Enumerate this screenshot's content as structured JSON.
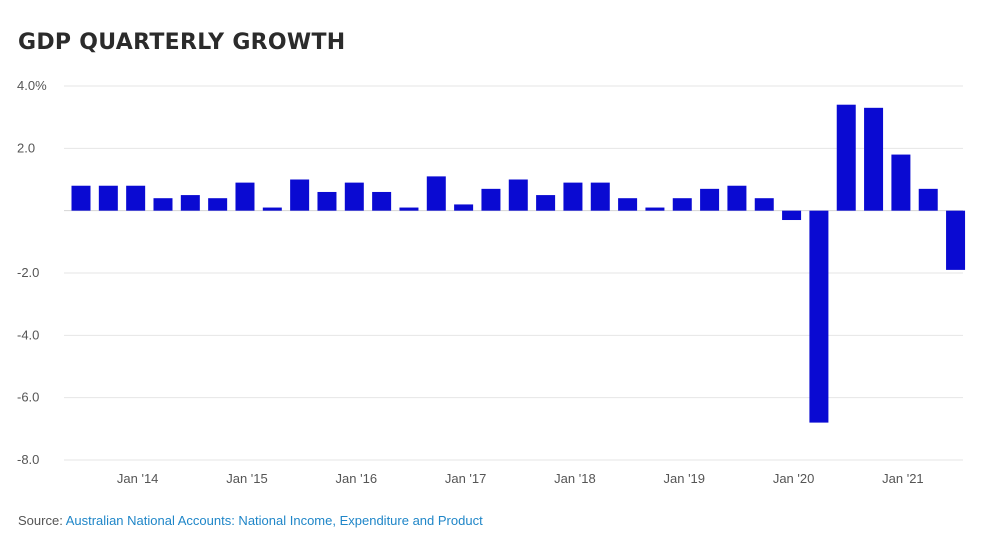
{
  "chart_data": {
    "type": "bar",
    "title": "GDP QUARTERLY GROWTH",
    "xlabel": "",
    "ylabel": "",
    "ylim": [
      -8.0,
      4.0
    ],
    "y_ticks": [
      {
        "value": 4.0,
        "label": "4.0%"
      },
      {
        "value": 2.0,
        "label": "2.0"
      },
      {
        "value": -2.0,
        "label": "-2.0"
      },
      {
        "value": -4.0,
        "label": "-4.0"
      },
      {
        "value": -6.0,
        "label": "-6.0"
      },
      {
        "value": -8.0,
        "label": "-8.0"
      }
    ],
    "x_ticks": [
      "Jan '14",
      "Jan '15",
      "Jan '16",
      "Jan '17",
      "Jan '18",
      "Jan '19",
      "Jan '20",
      "Jan '21"
    ],
    "categories": [
      "2013 Q3",
      "2013 Q4",
      "2014 Q1",
      "2014 Q2",
      "2014 Q3",
      "2014 Q4",
      "2015 Q1",
      "2015 Q2",
      "2015 Q3",
      "2015 Q4",
      "2016 Q1",
      "2016 Q2",
      "2016 Q3",
      "2016 Q4",
      "2017 Q1",
      "2017 Q2",
      "2017 Q3",
      "2017 Q4",
      "2018 Q1",
      "2018 Q2",
      "2018 Q3",
      "2018 Q4",
      "2019 Q1",
      "2019 Q2",
      "2019 Q3",
      "2019 Q4",
      "2020 Q1",
      "2020 Q2",
      "2020 Q3",
      "2020 Q4",
      "2021 Q1",
      "2021 Q2",
      "2021 Q3"
    ],
    "values": [
      0.8,
      0.8,
      0.8,
      0.4,
      0.5,
      0.4,
      0.9,
      0.1,
      1.0,
      0.6,
      0.9,
      0.6,
      0.1,
      1.1,
      0.2,
      0.7,
      1.0,
      0.5,
      0.9,
      0.9,
      0.4,
      0.1,
      0.4,
      0.7,
      0.8,
      0.4,
      -0.3,
      -6.8,
      3.4,
      3.3,
      1.8,
      0.7,
      -1.9
    ],
    "grid": true,
    "bar_color": "#0a0ad2",
    "grid_color": "#e6e6e6"
  },
  "source": {
    "prefix": "Source:",
    "text": "Australian National Accounts: National Income, Expenditure and Product",
    "link_color": "#1f86c8"
  }
}
